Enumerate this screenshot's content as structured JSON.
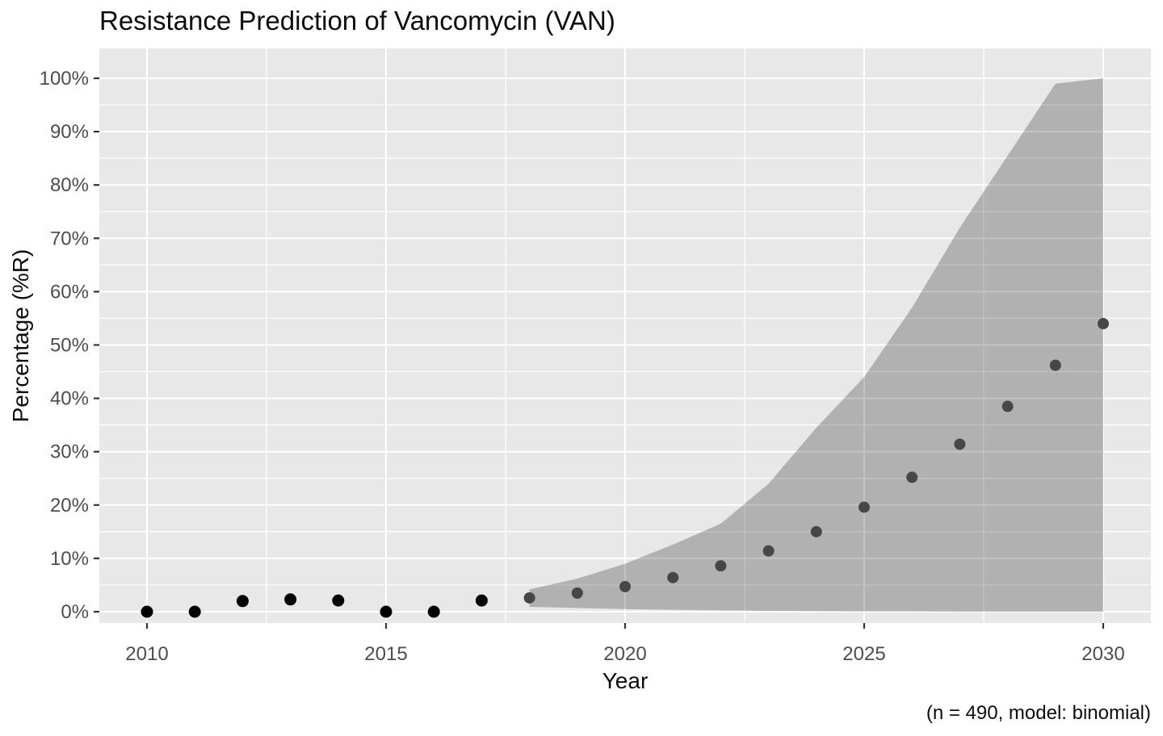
{
  "colors": {
    "background": "#ffffff",
    "panel_bg": "#e8e8e8",
    "gridline": "#ffffff",
    "tick_mark": "#333333",
    "tick_label": "#4d4d4d",
    "title": "#0d0d0d",
    "observed_point": "#000000",
    "predicted_point": "#474747",
    "ribbon": "#000000"
  },
  "chart_data": {
    "type": "scatter",
    "title": "Resistance Prediction of Vancomycin (VAN)",
    "xlabel": "Year",
    "ylabel": "Percentage (%R)",
    "caption": "(n = 490, model: binomial)",
    "legend": false,
    "grid": true,
    "xlim": [
      2009,
      2031
    ],
    "ylim": [
      -2,
      105.5
    ],
    "x_major_ticks": [
      2010,
      2015,
      2020,
      2025,
      2030
    ],
    "x_tick_labels": [
      "2010",
      "2015",
      "2020",
      "2025",
      "2030"
    ],
    "x_minor_ticks": [
      2012.5,
      2017.5,
      2022.5,
      2027.5
    ],
    "y_major_ticks": [
      0,
      10,
      20,
      30,
      40,
      50,
      60,
      70,
      80,
      90,
      100
    ],
    "y_tick_labels": [
      "0%",
      "10%",
      "20%",
      "30%",
      "40%",
      "50%",
      "60%",
      "70%",
      "80%",
      "90%",
      "100%"
    ],
    "y_minor_ticks": [
      5,
      15,
      25,
      35,
      45,
      55,
      65,
      75,
      85,
      95
    ],
    "series": [
      {
        "name": "observed",
        "marker_radius": 7.5,
        "color": "#000000",
        "points": [
          {
            "x": 2010,
            "y": 0.0
          },
          {
            "x": 2011,
            "y": 0.0
          },
          {
            "x": 2012,
            "y": 2.0
          },
          {
            "x": 2013,
            "y": 2.3
          },
          {
            "x": 2014,
            "y": 2.1
          },
          {
            "x": 2015,
            "y": 0.0
          },
          {
            "x": 2016,
            "y": 0.0
          },
          {
            "x": 2017,
            "y": 2.1
          }
        ]
      },
      {
        "name": "predicted",
        "marker_radius": 7,
        "color": "#474747",
        "points": [
          {
            "x": 2018,
            "y": 2.6
          },
          {
            "x": 2019,
            "y": 3.5
          },
          {
            "x": 2020,
            "y": 4.7
          },
          {
            "x": 2021,
            "y": 6.4
          },
          {
            "x": 2022,
            "y": 8.6
          },
          {
            "x": 2023,
            "y": 11.4
          },
          {
            "x": 2024,
            "y": 15.0
          },
          {
            "x": 2025,
            "y": 19.6
          },
          {
            "x": 2026,
            "y": 25.2
          },
          {
            "x": 2027,
            "y": 31.4
          },
          {
            "x": 2028,
            "y": 38.5
          },
          {
            "x": 2029,
            "y": 46.2
          },
          {
            "x": 2030,
            "y": 54.0
          }
        ]
      }
    ],
    "ribbon": {
      "name": "confidence-interval",
      "color": "#000000",
      "opacity": 0.235,
      "points": [
        {
          "x": 2018,
          "lower": 0.9,
          "upper": 4.2
        },
        {
          "x": 2019,
          "lower": 0.7,
          "upper": 6.2
        },
        {
          "x": 2020,
          "lower": 0.5,
          "upper": 9.0
        },
        {
          "x": 2021,
          "lower": 0.35,
          "upper": 12.6
        },
        {
          "x": 2022,
          "lower": 0.25,
          "upper": 16.5
        },
        {
          "x": 2023,
          "lower": 0.15,
          "upper": 24.0
        },
        {
          "x": 2024,
          "lower": 0.1,
          "upper": 34.5
        },
        {
          "x": 2025,
          "lower": 0.05,
          "upper": 44.0
        },
        {
          "x": 2026,
          "lower": 0.05,
          "upper": 57.0
        },
        {
          "x": 2027,
          "lower": 0.0,
          "upper": 72.0
        },
        {
          "x": 2028,
          "lower": 0.0,
          "upper": 85.5
        },
        {
          "x": 2029,
          "lower": 0.0,
          "upper": 99.0
        },
        {
          "x": 2030,
          "lower": 0.0,
          "upper": 100.0
        }
      ]
    }
  }
}
